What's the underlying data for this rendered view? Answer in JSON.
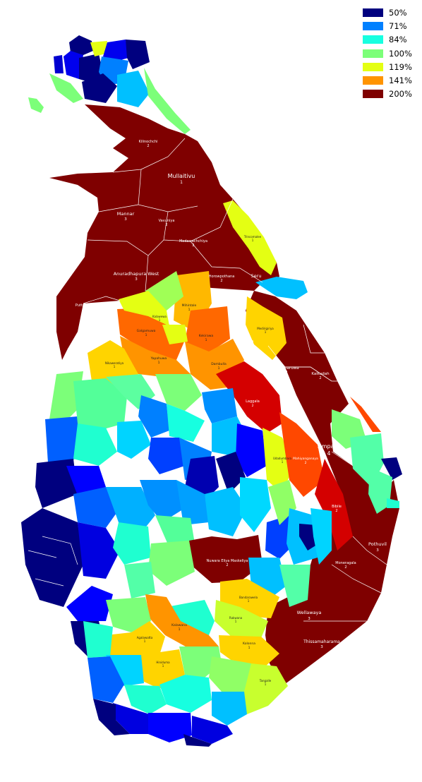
{
  "legend": {
    "items": [
      {
        "label": "50%",
        "color": "#00007f"
      },
      {
        "label": "71%",
        "color": "#0080ff"
      },
      {
        "label": "84%",
        "color": "#17ffe0"
      },
      {
        "label": "100%",
        "color": "#7cff79"
      },
      {
        "label": "119%",
        "color": "#e4ff13"
      },
      {
        "label": "141%",
        "color": "#ff9400"
      },
      {
        "label": "200%",
        "color": "#7f0000"
      }
    ]
  },
  "districts": {
    "kilinochchi": {
      "name": "Kilinochchi",
      "seats": "2"
    },
    "mullaitivu": {
      "name": "Mullaitivu",
      "seats": "1"
    },
    "mannar": {
      "name": "Mannar",
      "seats": "3"
    },
    "vavuniya": {
      "name": "Vavuniya",
      "seats": "2"
    },
    "medawachchiya": {
      "name": "Medawachchiya",
      "seats": "2"
    },
    "trincomalee": {
      "name": "Trincomalee",
      "seats": "1"
    },
    "horowpothana": {
      "name": "Horowpothana",
      "seats": "2"
    },
    "seruwila": {
      "name": "Seru"
    },
    "anuradhapura_west": {
      "name": "Anuradhapura West",
      "seats": "3"
    },
    "puttalam": {
      "name": "Puttalam"
    },
    "mihintale": {
      "name": "Mihintale",
      "seats": "1"
    },
    "kekirawa": {
      "name": "Kekirawa",
      "seats": "1"
    },
    "galgamuwa": {
      "name": "Galgamuwa",
      "seats": "1"
    },
    "kalawewa": {
      "name": "Kalawewa",
      "seats": "1"
    },
    "medirigiriya": {
      "name": "Medirigiriya",
      "seats": "1"
    },
    "anamaduwa": {
      "name": "Anamaduwa",
      "seats": "2"
    },
    "minneriya": {
      "name": "Minneriya",
      "seats": "2"
    },
    "yapahuwa": {
      "name": "Yapahuwa",
      "seats": "1"
    },
    "dambulla": {
      "name": "Dambulla",
      "seats": "1"
    },
    "nikaweratiya": {
      "name": "Nikaweratiya",
      "seats": "1"
    },
    "polonnaruwa": {
      "name": "Polonnaruwa",
      "seats": "2"
    },
    "kalkudah": {
      "name": "Kalkudah",
      "seats": "2"
    },
    "laggala": {
      "name": "Laggala",
      "seats": "2"
    },
    "ampara": {
      "name": "Ampara",
      "seats": "4"
    },
    "udadumbara": {
      "name": "Udadumbara",
      "seats": "1"
    },
    "mahiyanganaya": {
      "name": "Mahiyanganaya",
      "seats": "2"
    },
    "bibile": {
      "name": "Bibile",
      "seats": "2"
    },
    "pothuvil": {
      "name": "Pothuvil",
      "seats": "3"
    },
    "nuwara_eliya": {
      "name": "Nuwara Eliya Maskeliya",
      "seats": "2"
    },
    "moneragala": {
      "name": "Moneragala",
      "seats": "2"
    },
    "bandarawela": {
      "name": "Bandarawela",
      "seats": "1"
    },
    "wellawaya": {
      "name": "Wellawaya",
      "seats": "3"
    },
    "kalawana": {
      "name": "Kalawana",
      "seats": "1"
    },
    "rakwana": {
      "name": "Rakwana",
      "seats": "1"
    },
    "thissamaharama": {
      "name": "Thissamaharama",
      "seats": "3"
    },
    "kolonna": {
      "name": "Kolonna",
      "seats": "1"
    },
    "agalawatta": {
      "name": "Agalawatta",
      "seats": "1"
    },
    "hiniduma": {
      "name": "Hiniduma",
      "seats": "1"
    },
    "tangalle": {
      "name": "Tangalle",
      "seats": "1"
    }
  }
}
